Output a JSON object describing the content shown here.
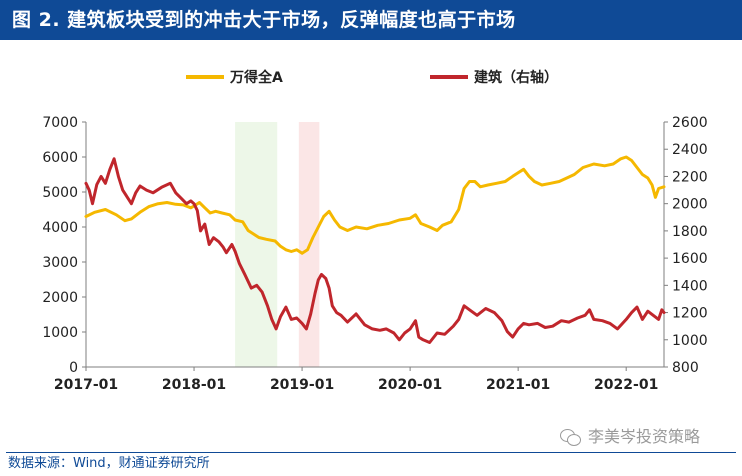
{
  "title": "图 2. 建筑板块受到的冲击大于市场，反弹幅度也高于市场",
  "source": "数据来源：Wind，财通证券研究所",
  "watermark": "李美岑投资策略",
  "chart_data": {
    "type": "line",
    "legend": {
      "placement": "top-center",
      "items": [
        {
          "name": "万得全A",
          "color": "#f5b800"
        },
        {
          "name": "建筑（右轴）",
          "color": "#c0262c"
        }
      ]
    },
    "x_ticks": [
      "2017-01",
      "2018-01",
      "2019-01",
      "2020-01",
      "2021-01",
      "2022-01"
    ],
    "x_range": [
      2017.0,
      2022.35
    ],
    "y_left": {
      "ticks": [
        0,
        1000,
        2000,
        3000,
        4000,
        5000,
        6000,
        7000
      ],
      "range": [
        0,
        7000
      ]
    },
    "y_right": {
      "ticks": [
        800,
        1000,
        1200,
        1400,
        1600,
        1800,
        2000,
        2200,
        2400,
        2600
      ],
      "range": [
        800,
        2600
      ]
    },
    "shaded_periods": [
      {
        "start": 2018.38,
        "end": 2018.77,
        "color": "#edf7e8"
      },
      {
        "start": 2018.97,
        "end": 2019.16,
        "color": "#fbe6e6"
      }
    ],
    "series": [
      {
        "name": "万得全A",
        "axis": "left",
        "color": "#f5b800",
        "points": [
          [
            2017.0,
            4300
          ],
          [
            2017.08,
            4420
          ],
          [
            2017.18,
            4500
          ],
          [
            2017.28,
            4350
          ],
          [
            2017.36,
            4180
          ],
          [
            2017.42,
            4230
          ],
          [
            2017.5,
            4420
          ],
          [
            2017.58,
            4580
          ],
          [
            2017.66,
            4660
          ],
          [
            2017.75,
            4700
          ],
          [
            2017.83,
            4650
          ],
          [
            2017.9,
            4630
          ],
          [
            2017.97,
            4550
          ],
          [
            2018.0,
            4600
          ],
          [
            2018.05,
            4700
          ],
          [
            2018.1,
            4550
          ],
          [
            2018.15,
            4400
          ],
          [
            2018.2,
            4450
          ],
          [
            2018.26,
            4400
          ],
          [
            2018.33,
            4350
          ],
          [
            2018.38,
            4200
          ],
          [
            2018.45,
            4150
          ],
          [
            2018.5,
            3900
          ],
          [
            2018.55,
            3800
          ],
          [
            2018.6,
            3700
          ],
          [
            2018.67,
            3650
          ],
          [
            2018.75,
            3600
          ],
          [
            2018.8,
            3450
          ],
          [
            2018.85,
            3350
          ],
          [
            2018.9,
            3300
          ],
          [
            2018.95,
            3350
          ],
          [
            2019.0,
            3250
          ],
          [
            2019.05,
            3350
          ],
          [
            2019.1,
            3700
          ],
          [
            2019.15,
            4000
          ],
          [
            2019.2,
            4300
          ],
          [
            2019.25,
            4450
          ],
          [
            2019.3,
            4200
          ],
          [
            2019.35,
            4000
          ],
          [
            2019.42,
            3900
          ],
          [
            2019.5,
            4000
          ],
          [
            2019.6,
            3950
          ],
          [
            2019.7,
            4050
          ],
          [
            2019.8,
            4100
          ],
          [
            2019.9,
            4200
          ],
          [
            2020.0,
            4250
          ],
          [
            2020.05,
            4350
          ],
          [
            2020.1,
            4100
          ],
          [
            2020.18,
            4000
          ],
          [
            2020.25,
            3900
          ],
          [
            2020.3,
            4050
          ],
          [
            2020.38,
            4150
          ],
          [
            2020.45,
            4500
          ],
          [
            2020.5,
            5100
          ],
          [
            2020.55,
            5300
          ],
          [
            2020.6,
            5300
          ],
          [
            2020.65,
            5150
          ],
          [
            2020.72,
            5200
          ],
          [
            2020.8,
            5250
          ],
          [
            2020.88,
            5300
          ],
          [
            2020.95,
            5450
          ],
          [
            2021.0,
            5550
          ],
          [
            2021.05,
            5650
          ],
          [
            2021.1,
            5450
          ],
          [
            2021.15,
            5300
          ],
          [
            2021.22,
            5200
          ],
          [
            2021.3,
            5250
          ],
          [
            2021.38,
            5300
          ],
          [
            2021.45,
            5400
          ],
          [
            2021.52,
            5500
          ],
          [
            2021.6,
            5700
          ],
          [
            2021.7,
            5800
          ],
          [
            2021.8,
            5750
          ],
          [
            2021.88,
            5800
          ],
          [
            2021.95,
            5950
          ],
          [
            2022.0,
            6000
          ],
          [
            2022.05,
            5900
          ],
          [
            2022.1,
            5700
          ],
          [
            2022.15,
            5500
          ],
          [
            2022.2,
            5400
          ],
          [
            2022.24,
            5200
          ],
          [
            2022.27,
            4850
          ],
          [
            2022.3,
            5100
          ],
          [
            2022.35,
            5150
          ]
        ]
      },
      {
        "name": "建筑（右轴）",
        "axis": "right",
        "color": "#c0262c",
        "points": [
          [
            2017.0,
            2150
          ],
          [
            2017.03,
            2100
          ],
          [
            2017.06,
            2000
          ],
          [
            2017.1,
            2140
          ],
          [
            2017.14,
            2200
          ],
          [
            2017.18,
            2150
          ],
          [
            2017.22,
            2250
          ],
          [
            2017.26,
            2330
          ],
          [
            2017.3,
            2200
          ],
          [
            2017.34,
            2100
          ],
          [
            2017.38,
            2050
          ],
          [
            2017.42,
            2000
          ],
          [
            2017.46,
            2080
          ],
          [
            2017.5,
            2130
          ],
          [
            2017.56,
            2100
          ],
          [
            2017.62,
            2080
          ],
          [
            2017.7,
            2120
          ],
          [
            2017.78,
            2150
          ],
          [
            2017.83,
            2080
          ],
          [
            2017.88,
            2040
          ],
          [
            2017.93,
            2000
          ],
          [
            2017.97,
            2020
          ],
          [
            2018.0,
            2000
          ],
          [
            2018.03,
            1950
          ],
          [
            2018.06,
            1800
          ],
          [
            2018.1,
            1850
          ],
          [
            2018.14,
            1700
          ],
          [
            2018.18,
            1750
          ],
          [
            2018.23,
            1720
          ],
          [
            2018.27,
            1680
          ],
          [
            2018.3,
            1640
          ],
          [
            2018.35,
            1700
          ],
          [
            2018.38,
            1650
          ],
          [
            2018.42,
            1560
          ],
          [
            2018.47,
            1480
          ],
          [
            2018.53,
            1380
          ],
          [
            2018.58,
            1400
          ],
          [
            2018.63,
            1350
          ],
          [
            2018.68,
            1250
          ],
          [
            2018.72,
            1150
          ],
          [
            2018.76,
            1080
          ],
          [
            2018.8,
            1170
          ],
          [
            2018.85,
            1240
          ],
          [
            2018.9,
            1150
          ],
          [
            2018.95,
            1160
          ],
          [
            2019.0,
            1120
          ],
          [
            2019.04,
            1080
          ],
          [
            2019.08,
            1190
          ],
          [
            2019.12,
            1340
          ],
          [
            2019.15,
            1440
          ],
          [
            2019.18,
            1480
          ],
          [
            2019.22,
            1450
          ],
          [
            2019.25,
            1380
          ],
          [
            2019.28,
            1250
          ],
          [
            2019.32,
            1200
          ],
          [
            2019.36,
            1180
          ],
          [
            2019.42,
            1130
          ],
          [
            2019.5,
            1190
          ],
          [
            2019.58,
            1110
          ],
          [
            2019.65,
            1080
          ],
          [
            2019.72,
            1070
          ],
          [
            2019.78,
            1080
          ],
          [
            2019.85,
            1050
          ],
          [
            2019.9,
            1000
          ],
          [
            2019.95,
            1050
          ],
          [
            2020.0,
            1080
          ],
          [
            2020.05,
            1140
          ],
          [
            2020.08,
            1020
          ],
          [
            2020.12,
            1000
          ],
          [
            2020.18,
            980
          ],
          [
            2020.25,
            1050
          ],
          [
            2020.32,
            1040
          ],
          [
            2020.4,
            1100
          ],
          [
            2020.45,
            1150
          ],
          [
            2020.5,
            1250
          ],
          [
            2020.55,
            1220
          ],
          [
            2020.62,
            1180
          ],
          [
            2020.7,
            1230
          ],
          [
            2020.78,
            1200
          ],
          [
            2020.85,
            1140
          ],
          [
            2020.9,
            1060
          ],
          [
            2020.95,
            1020
          ],
          [
            2021.0,
            1080
          ],
          [
            2021.05,
            1120
          ],
          [
            2021.1,
            1110
          ],
          [
            2021.18,
            1120
          ],
          [
            2021.25,
            1090
          ],
          [
            2021.32,
            1100
          ],
          [
            2021.4,
            1140
          ],
          [
            2021.47,
            1130
          ],
          [
            2021.55,
            1160
          ],
          [
            2021.62,
            1180
          ],
          [
            2021.66,
            1220
          ],
          [
            2021.7,
            1150
          ],
          [
            2021.78,
            1140
          ],
          [
            2021.85,
            1120
          ],
          [
            2021.92,
            1080
          ],
          [
            2022.0,
            1150
          ],
          [
            2022.05,
            1200
          ],
          [
            2022.1,
            1240
          ],
          [
            2022.15,
            1150
          ],
          [
            2022.2,
            1210
          ],
          [
            2022.25,
            1180
          ],
          [
            2022.3,
            1150
          ],
          [
            2022.33,
            1220
          ],
          [
            2022.35,
            1200
          ]
        ]
      }
    ]
  }
}
